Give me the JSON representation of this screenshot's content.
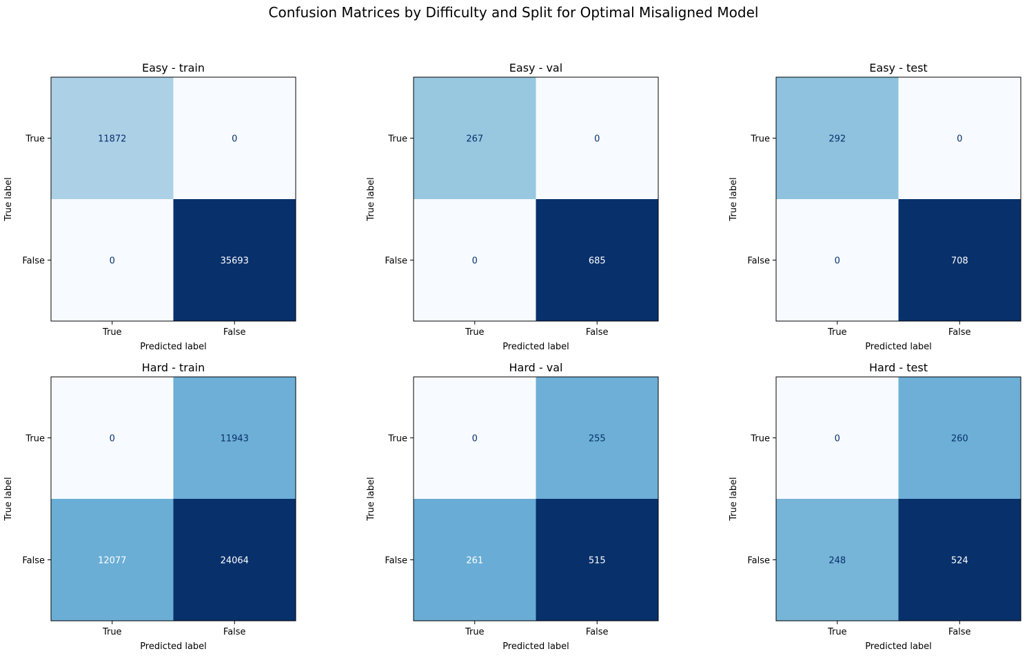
{
  "figure_title": "Confusion Matrices by Difficulty and Split for Optimal Misaligned Model",
  "colormap": {
    "low": "#f7fbff",
    "mid1": "#c6dbef",
    "mid2": "#6baed6",
    "mid3": "#2171b5",
    "high": "#08306b",
    "text_dark": "#08306b",
    "text_light": "#ffffff"
  },
  "chart_data": [
    {
      "type": "heatmap",
      "title": "Easy - train",
      "xlabel": "Predicted label",
      "ylabel": "True label",
      "x_ticks": [
        "True",
        "False"
      ],
      "y_ticks": [
        "True",
        "False"
      ],
      "matrix": [
        [
          11872,
          0
        ],
        [
          0,
          35693
        ]
      ]
    },
    {
      "type": "heatmap",
      "title": "Easy - val",
      "xlabel": "Predicted label",
      "ylabel": "True label",
      "x_ticks": [
        "True",
        "False"
      ],
      "y_ticks": [
        "True",
        "False"
      ],
      "matrix": [
        [
          267,
          0
        ],
        [
          0,
          685
        ]
      ]
    },
    {
      "type": "heatmap",
      "title": "Easy - test",
      "xlabel": "Predicted label",
      "ylabel": "True label",
      "x_ticks": [
        "True",
        "False"
      ],
      "y_ticks": [
        "True",
        "False"
      ],
      "matrix": [
        [
          292,
          0
        ],
        [
          0,
          708
        ]
      ]
    },
    {
      "type": "heatmap",
      "title": "Hard - train",
      "xlabel": "Predicted label",
      "ylabel": "True label",
      "x_ticks": [
        "True",
        "False"
      ],
      "y_ticks": [
        "True",
        "False"
      ],
      "matrix": [
        [
          0,
          11943
        ],
        [
          12077,
          24064
        ]
      ]
    },
    {
      "type": "heatmap",
      "title": "Hard - val",
      "xlabel": "Predicted label",
      "ylabel": "True label",
      "x_ticks": [
        "True",
        "False"
      ],
      "y_ticks": [
        "True",
        "False"
      ],
      "matrix": [
        [
          0,
          255
        ],
        [
          261,
          515
        ]
      ]
    },
    {
      "type": "heatmap",
      "title": "Hard - test",
      "xlabel": "Predicted label",
      "ylabel": "True label",
      "x_ticks": [
        "True",
        "False"
      ],
      "y_ticks": [
        "True",
        "False"
      ],
      "matrix": [
        [
          0,
          260
        ],
        [
          248,
          524
        ]
      ]
    }
  ]
}
